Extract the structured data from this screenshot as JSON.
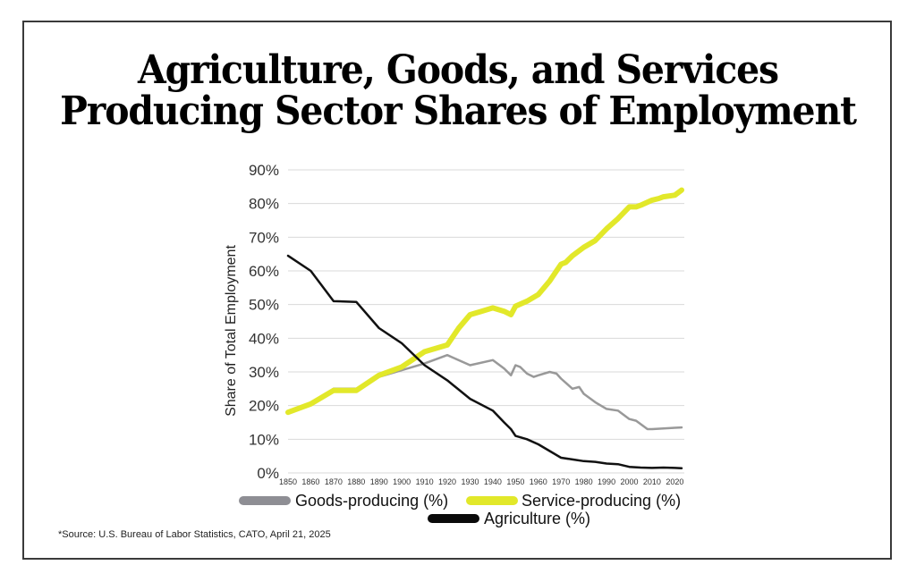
{
  "chart_data": {
    "type": "line",
    "title": "Agriculture, Goods, and Services Producing Sector Shares of Employment",
    "title_lines": [
      "Agriculture, Goods, and Services",
      "Producing Sector Shares of Employment"
    ],
    "xlabel": "",
    "ylabel": "Share of Total Employment",
    "xlim": [
      1850,
      2023
    ],
    "ylim": [
      0,
      90
    ],
    "x_ticks": [
      1850,
      1860,
      1870,
      1880,
      1890,
      1900,
      1910,
      1920,
      1930,
      1940,
      1950,
      1960,
      1970,
      1980,
      1990,
      2000,
      2010,
      2020
    ],
    "y_ticks": [
      0,
      10,
      20,
      30,
      40,
      50,
      60,
      70,
      80,
      90
    ],
    "y_tick_labels": [
      "0%",
      "10%",
      "20%",
      "30%",
      "40%",
      "50%",
      "60%",
      "70%",
      "80%",
      "90%"
    ],
    "grid": true,
    "legend_position": "bottom",
    "series": [
      {
        "name": "Goods-producing (%)",
        "color": "#999999",
        "x": [
          1850,
          1860,
          1870,
          1880,
          1890,
          1900,
          1910,
          1920,
          1930,
          1940,
          1945,
          1948,
          1950,
          1952,
          1955,
          1958,
          1960,
          1965,
          1968,
          1970,
          1975,
          1978,
          1980,
          1983,
          1985,
          1990,
          1995,
          2000,
          2003,
          2005,
          2008,
          2010,
          2015,
          2020,
          2023
        ],
        "values": [
          18,
          20.5,
          25,
          25,
          28.5,
          30.5,
          32.5,
          35,
          32,
          33.5,
          31,
          29,
          32,
          31.5,
          29.5,
          28.5,
          29,
          30,
          29.5,
          28,
          25,
          25.5,
          23.5,
          22,
          21,
          19,
          18.5,
          16,
          15.5,
          14.5,
          13,
          13,
          13.2,
          13.4,
          13.5
        ]
      },
      {
        "name": "Service-producing (%)",
        "color": "#e2e82a",
        "x": [
          1850,
          1860,
          1870,
          1880,
          1890,
          1900,
          1910,
          1920,
          1925,
          1930,
          1935,
          1940,
          1945,
          1948,
          1950,
          1955,
          1960,
          1965,
          1968,
          1970,
          1972,
          1975,
          1980,
          1985,
          1990,
          1995,
          2000,
          2003,
          2005,
          2010,
          2013,
          2015,
          2020,
          2023
        ],
        "values": [
          18,
          20.5,
          24.5,
          24.5,
          29,
          31.5,
          36,
          38,
          43,
          47,
          48,
          49,
          48,
          47,
          49.5,
          51,
          53,
          57,
          60,
          62,
          62.5,
          64.5,
          67,
          69,
          72.5,
          75.5,
          79,
          79,
          79.5,
          81,
          81.5,
          82,
          82.5,
          84
        ]
      },
      {
        "name": "Agriculture (%)",
        "color": "#111111",
        "x": [
          1850,
          1860,
          1870,
          1880,
          1890,
          1900,
          1910,
          1920,
          1930,
          1940,
          1945,
          1948,
          1950,
          1955,
          1960,
          1965,
          1970,
          1975,
          1980,
          1985,
          1990,
          1995,
          2000,
          2005,
          2010,
          2015,
          2020,
          2023
        ],
        "values": [
          64.5,
          60,
          51,
          50.8,
          43,
          38.5,
          32,
          27.5,
          22,
          18.5,
          15,
          13,
          11,
          10,
          8.5,
          6.5,
          4.5,
          4,
          3.5,
          3.3,
          2.8,
          2.6,
          1.8,
          1.6,
          1.5,
          1.6,
          1.5,
          1.4
        ]
      }
    ]
  },
  "source_note": "*Source: U.S. Bureau of Labor Statistics, CATO, April 21, 2025"
}
